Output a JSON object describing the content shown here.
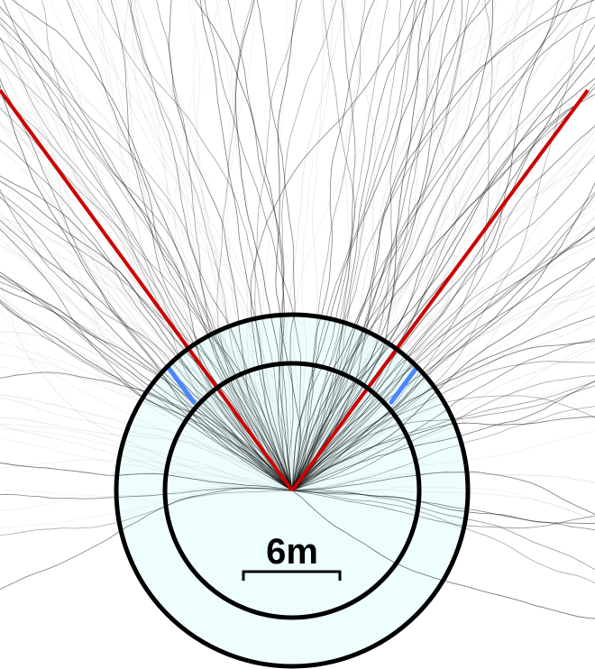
{
  "figure": {
    "description_type": "trajectory-fan-diagram",
    "scale_bar": {
      "label": "6m"
    },
    "colors": {
      "background": "#ffffff",
      "trajectories": "#000000",
      "boundary_lines": "#cc0000",
      "highlight_arc": "#4a86ff",
      "annulus_fill": "#eefefe",
      "circle_stroke": "#000000"
    },
    "trajectory_count": 900,
    "boundary_angles_deg": [
      -40,
      40
    ]
  }
}
